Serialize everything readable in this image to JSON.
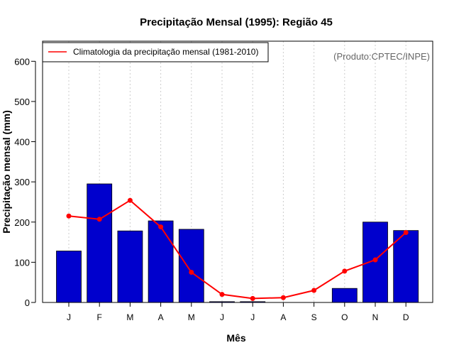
{
  "chart_data": {
    "type": "bar",
    "title": "Precipitação Mensal (1995): Região 45",
    "xlabel": "Mês",
    "ylabel": "Precipitação mensal (mm)",
    "ylim": [
      0,
      650
    ],
    "yticks": [
      0,
      100,
      200,
      300,
      400,
      500,
      600
    ],
    "categories": [
      "J",
      "F",
      "M",
      "A",
      "M",
      "J",
      "J",
      "A",
      "S",
      "O",
      "N",
      "D"
    ],
    "series": [
      {
        "name": "Precipitação mensal (1995)",
        "type": "bar",
        "color": "#0000CD",
        "values": [
          128,
          295,
          178,
          203,
          182,
          2,
          2,
          0,
          0,
          35,
          200,
          179
        ]
      },
      {
        "name": "Climatologia da precipitação mensal (1981-2010)",
        "type": "line",
        "color": "#FF0000",
        "values": [
          215,
          207,
          254,
          188,
          75,
          20,
          10,
          12,
          30,
          78,
          106,
          174
        ]
      }
    ],
    "grid": "vertical dotted",
    "legend": {
      "position": "top-left",
      "label": "Climatologia da precipitação mensal (1981-2010)"
    },
    "annotation": "(Produto:CPTEC/INPE)"
  }
}
